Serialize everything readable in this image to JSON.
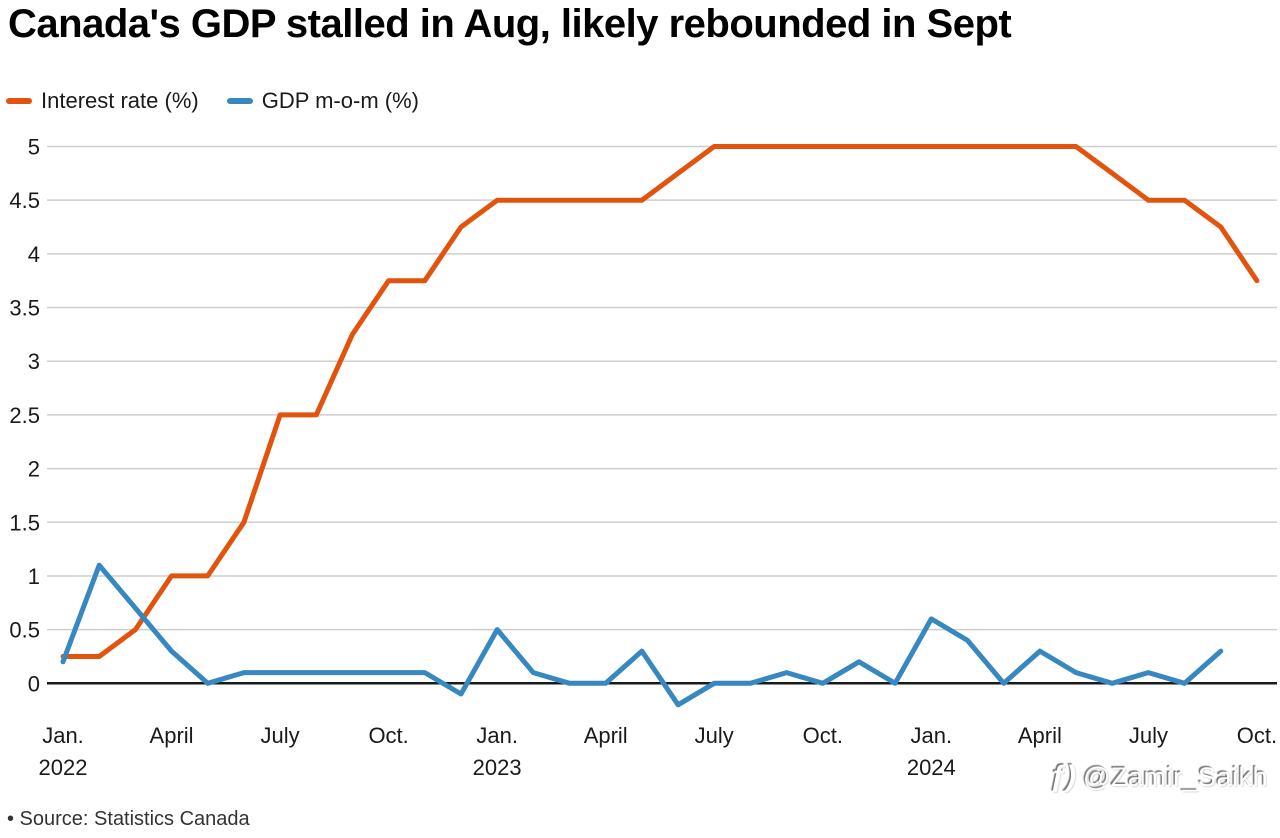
{
  "title": "Canada's GDP stalled in Aug, likely rebounded in Sept",
  "legend": {
    "items": [
      {
        "label": "Interest rate (%)",
        "color": "#E2530D"
      },
      {
        "label": "GDP m-o-m (%)",
        "color": "#3787C1"
      }
    ]
  },
  "chart_data": {
    "type": "line",
    "title": "Canada's GDP stalled in Aug, likely rebounded in Sept",
    "x_months": [
      "Jan 2022",
      "Feb 2022",
      "Mar 2022",
      "Apr 2022",
      "May 2022",
      "Jun 2022",
      "Jul 2022",
      "Aug 2022",
      "Sep 2022",
      "Oct 2022",
      "Nov 2022",
      "Dec 2022",
      "Jan 2023",
      "Feb 2023",
      "Mar 2023",
      "Apr 2023",
      "May 2023",
      "Jun 2023",
      "Jul 2023",
      "Aug 2023",
      "Sep 2023",
      "Oct 2023",
      "Nov 2023",
      "Dec 2023",
      "Jan 2024",
      "Feb 2024",
      "Mar 2024",
      "Apr 2024",
      "May 2024",
      "Jun 2024",
      "Jul 2024",
      "Aug 2024",
      "Sep 2024",
      "Oct 2024"
    ],
    "x_ticks": [
      {
        "index": 0,
        "label": "Jan.",
        "year": "2022"
      },
      {
        "index": 3,
        "label": "April"
      },
      {
        "index": 6,
        "label": "July"
      },
      {
        "index": 9,
        "label": "Oct."
      },
      {
        "index": 12,
        "label": "Jan.",
        "year": "2023"
      },
      {
        "index": 15,
        "label": "April"
      },
      {
        "index": 18,
        "label": "July"
      },
      {
        "index": 21,
        "label": "Oct."
      },
      {
        "index": 24,
        "label": "Jan.",
        "year": "2024"
      },
      {
        "index": 27,
        "label": "April"
      },
      {
        "index": 30,
        "label": "July"
      },
      {
        "index": 33,
        "label": "Oct."
      }
    ],
    "y_axis": {
      "min": 0,
      "max": 5,
      "step": 0.5,
      "tick_labels": [
        "0",
        "0.5",
        "1",
        "1.5",
        "2",
        "2.5",
        "3",
        "3.5",
        "4",
        "4.5",
        "5"
      ]
    },
    "series": [
      {
        "name": "Interest rate (%)",
        "color": "#E2530D",
        "values": [
          0.25,
          0.25,
          0.5,
          1.0,
          1.0,
          1.5,
          2.5,
          2.5,
          3.25,
          3.75,
          3.75,
          4.25,
          4.5,
          4.5,
          4.5,
          4.5,
          4.5,
          4.75,
          5.0,
          5.0,
          5.0,
          5.0,
          5.0,
          5.0,
          5.0,
          5.0,
          5.0,
          5.0,
          5.0,
          4.75,
          4.5,
          4.5,
          4.25,
          3.75
        ]
      },
      {
        "name": "GDP m-o-m (%)",
        "color": "#3787C1",
        "values": [
          0.2,
          1.1,
          0.7,
          0.3,
          0.0,
          0.1,
          0.1,
          0.1,
          0.1,
          0.1,
          0.1,
          -0.1,
          0.5,
          0.1,
          0.0,
          0.0,
          0.3,
          -0.2,
          0.0,
          0.0,
          0.1,
          0.0,
          0.2,
          0.0,
          0.6,
          0.4,
          0.0,
          0.3,
          0.1,
          0.0,
          0.1,
          0.0,
          0.3
        ]
      }
    ],
    "grid": "horizontal",
    "legend_position": "top-left",
    "gridline_color": "#cecece",
    "zero_line_color": "#1a1a1a"
  },
  "footer": {
    "source": "• Source: Statistics Canada"
  },
  "watermark": {
    "logo_glyph": "ƒ)",
    "handle": "@Zamir_Saikh"
  }
}
